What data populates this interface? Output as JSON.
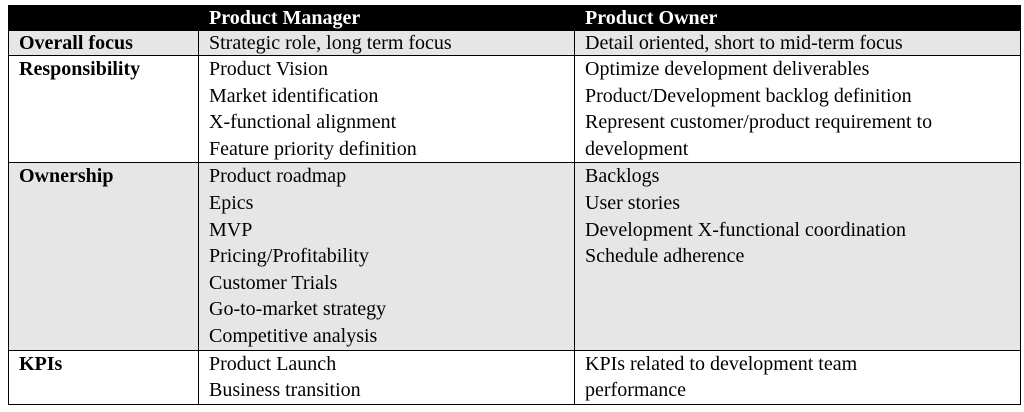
{
  "header": {
    "col1": "",
    "col2": "Product Manager",
    "col3": "Product Owner"
  },
  "rows": [
    {
      "label": "Overall focus",
      "pm": [
        "Strategic role, long term focus"
      ],
      "po": [
        "Detail oriented, short to mid-term focus"
      ]
    },
    {
      "label": "Responsibility",
      "pm": [
        "Product Vision",
        "Market identification",
        "X-functional alignment",
        "Feature priority definition"
      ],
      "po": [
        "Optimize development deliverables",
        "Product/Development backlog definition",
        "Represent customer/product requirement to",
        "development"
      ]
    },
    {
      "label": "Ownership",
      "pm": [
        "Product roadmap",
        "Epics",
        "MVP",
        "Pricing/Profitability",
        "Customer Trials",
        "Go-to-market strategy",
        "Competitive analysis"
      ],
      "po": [
        "Backlogs",
        "User stories",
        "Development X-functional coordination",
        "Schedule adherence"
      ]
    },
    {
      "label": "KPIs",
      "pm": [
        "Product Launch",
        "Business transition"
      ],
      "po": [
        "KPIs related to development team",
        "performance"
      ]
    }
  ],
  "colors": {
    "header_bg": "#000000",
    "header_text": "#ffffff",
    "shaded_row": "#e6e6e6",
    "border": "#000000"
  }
}
